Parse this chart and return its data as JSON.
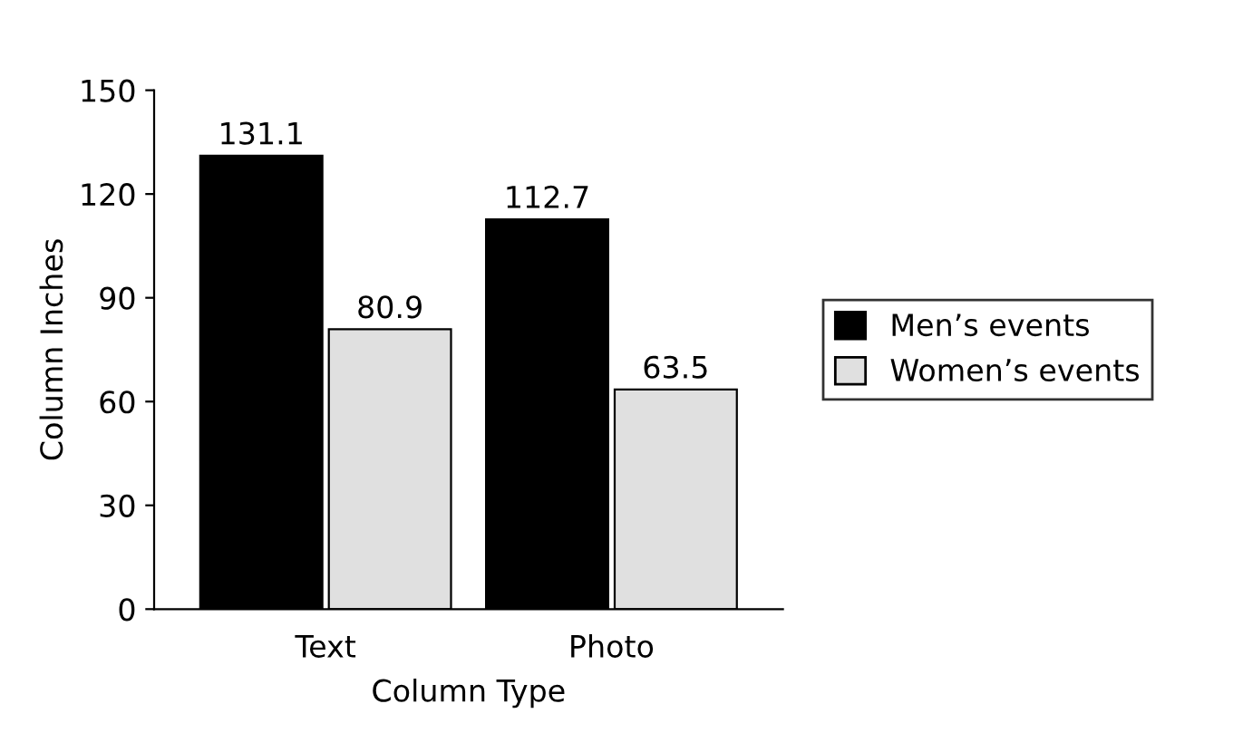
{
  "chart_data": {
    "type": "bar",
    "xlabel": "Column Type",
    "ylabel": "Column Inches",
    "categories": [
      "Text",
      "Photo"
    ],
    "series": [
      {
        "name": "Men’s events",
        "color": "#000000",
        "values": [
          131.1,
          112.7
        ]
      },
      {
        "name": "Women’s events",
        "color": "#e0e0e0",
        "values": [
          80.9,
          63.5
        ]
      }
    ],
    "ylim": [
      0,
      150
    ],
    "yticks": [
      0,
      30,
      60,
      90,
      120,
      150
    ],
    "grid": false,
    "legend": "right",
    "data_labels": true
  }
}
